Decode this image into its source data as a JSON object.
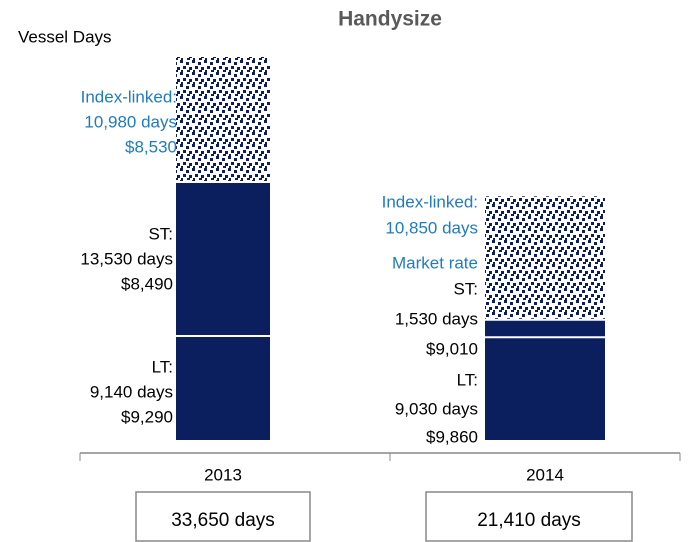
{
  "chart_data": {
    "type": "stacked_bar",
    "title": "Handysize",
    "y_label": "Vessel Days",
    "categories": [
      "2013",
      "2014"
    ],
    "series": [
      {
        "name": "LT:",
        "color": "#0b1f5e",
        "values": [
          9140,
          9030
        ],
        "value_labels": [
          "9,140 days",
          "9,030 days"
        ],
        "rate_labels": [
          "$9,290",
          "$9,860"
        ]
      },
      {
        "name": "ST:",
        "color": "#0b1f5e",
        "values": [
          13530,
          1530
        ],
        "value_labels": [
          "13,530 days",
          "1,530 days"
        ],
        "rate_labels": [
          "$8,490",
          "$9,010"
        ]
      },
      {
        "name": "Index-linked:",
        "color": "#0b1f5e",
        "pattern": true,
        "label_color": "#1f7bc1",
        "values": [
          10980,
          10850
        ],
        "value_labels": [
          "10,980 days",
          "10,850  days"
        ],
        "rate_labels": [
          "$8,530",
          "Market rate"
        ]
      }
    ],
    "totals": [
      33650,
      21410
    ],
    "total_labels": [
      "33,650 days",
      "21,410 days"
    ]
  }
}
